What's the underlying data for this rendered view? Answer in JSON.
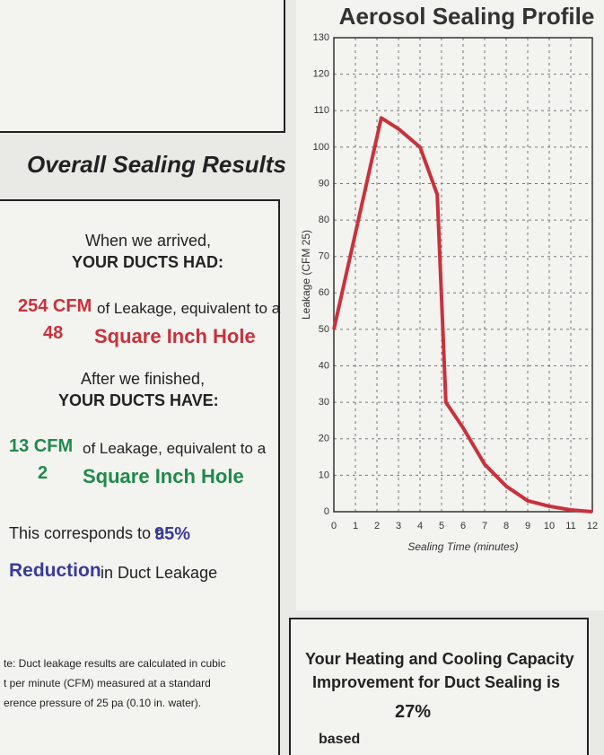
{
  "document": {
    "left": {
      "heading": "Overall Sealing Results",
      "arrived_intro": "When we arrived,",
      "arrived_head": "YOUR DUCTS HAD:",
      "before_cfm": "254 CFM",
      "before_text": "of Leakage, equivalent to a",
      "before_hole": "48",
      "before_hole_text": "Square Inch Hole",
      "finished_intro": "After we finished,",
      "finished_head": "YOUR DUCTS HAVE:",
      "after_cfm": "13 CFM",
      "after_text": "of Leakage, equivalent to a",
      "after_hole": "2",
      "after_hole_text": "Square Inch Hole",
      "corresponds": "This corresponds to a",
      "percent": "95%",
      "reduction": "Reduction",
      "reduction_text": "in Duct Leakage",
      "note": [
        "te: Duct leakage results are calculated in cubic",
        "t per minute (CFM) measured at a standard",
        "erence pressure of 25 pa (0.10 in. water)."
      ]
    },
    "capacity": {
      "lines": [
        "Your Heating and Cooling Capacity",
        "Improvement for Duct Sealing is"
      ],
      "percent": "27%",
      "based": "based"
    }
  },
  "chart_data": {
    "type": "line",
    "title": "Aerosol Sealing Profile",
    "x_label": "Sealing Time (minutes)",
    "y_label": "Leakage (CFM 25)",
    "x": [
      0,
      2.2,
      3,
      4,
      4.8,
      5.2,
      6,
      7,
      8,
      9,
      10,
      11,
      12
    ],
    "series": [
      {
        "color": "#c8323c",
        "values": [
          50,
          108,
          105,
          100,
          87,
          30,
          23,
          13,
          7,
          3,
          1.5,
          0.5,
          0
        ]
      }
    ],
    "xlim": [
      0,
      12
    ],
    "ylim": [
      0,
      130
    ],
    "xticks": [
      0,
      1,
      2,
      3,
      4,
      5,
      6,
      7,
      8,
      9,
      10,
      11,
      12
    ],
    "yticks": [
      0,
      10,
      20,
      30,
      40,
      50,
      60,
      70,
      80,
      90,
      100,
      110,
      120,
      130
    ],
    "grid": true
  }
}
